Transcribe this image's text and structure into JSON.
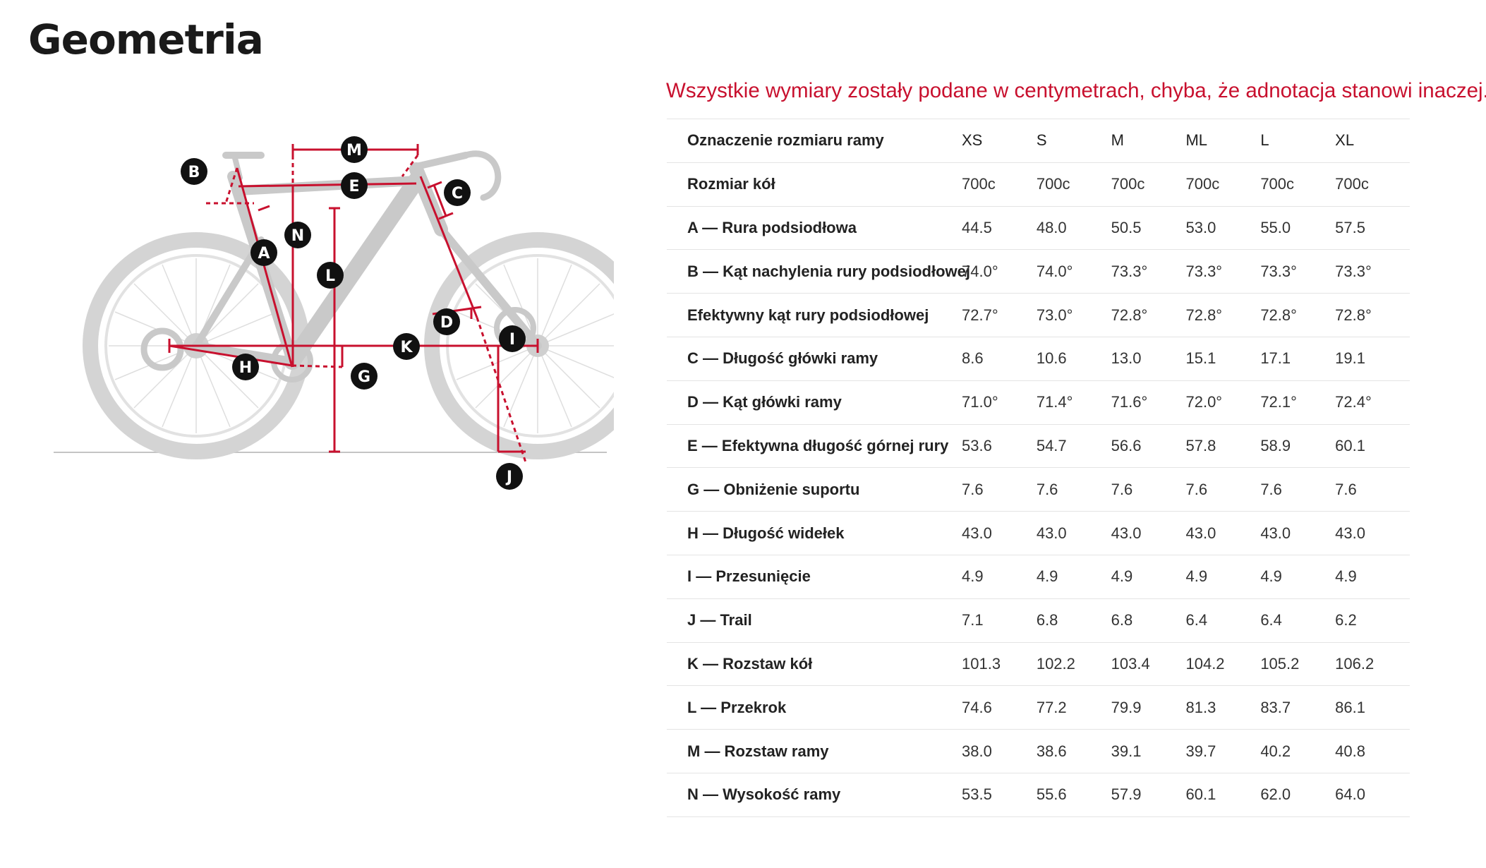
{
  "page": {
    "title": "Geometria",
    "note": "Wszystkie wymiary zostały podane w centymetrach, chyba, że adnotacja stanowi inaczej."
  },
  "diagram": {
    "markers": [
      "M",
      "B",
      "E",
      "C",
      "N",
      "A",
      "L",
      "D",
      "I",
      "K",
      "H",
      "G",
      "J"
    ]
  },
  "table": {
    "header_label": "Oznaczenie rozmiaru ramy",
    "sizes": [
      "XS",
      "S",
      "M",
      "ML",
      "L",
      "XL"
    ],
    "rows": [
      {
        "label": "Rozmiar kół",
        "values": [
          "700c",
          "700c",
          "700c",
          "700c",
          "700c",
          "700c"
        ]
      },
      {
        "label": "A — Rura podsiodłowa",
        "values": [
          "44.5",
          "48.0",
          "50.5",
          "53.0",
          "55.0",
          "57.5"
        ]
      },
      {
        "label": "B — Kąt nachylenia rury podsiodłowej",
        "values": [
          "74.0°",
          "74.0°",
          "73.3°",
          "73.3°",
          "73.3°",
          "73.3°"
        ]
      },
      {
        "label": "Efektywny kąt rury podsiodłowej",
        "values": [
          "72.7°",
          "73.0°",
          "72.8°",
          "72.8°",
          "72.8°",
          "72.8°"
        ]
      },
      {
        "label": "C — Długość główki ramy",
        "values": [
          "8.6",
          "10.6",
          "13.0",
          "15.1",
          "17.1",
          "19.1"
        ]
      },
      {
        "label": "D — Kąt główki ramy",
        "values": [
          "71.0°",
          "71.4°",
          "71.6°",
          "72.0°",
          "72.1°",
          "72.4°"
        ]
      },
      {
        "label": "E — Efektywna długość górnej rury",
        "values": [
          "53.6",
          "54.7",
          "56.6",
          "57.8",
          "58.9",
          "60.1"
        ]
      },
      {
        "label": "G — Obniżenie suportu",
        "values": [
          "7.6",
          "7.6",
          "7.6",
          "7.6",
          "7.6",
          "7.6"
        ]
      },
      {
        "label": "H — Długość widełek",
        "values": [
          "43.0",
          "43.0",
          "43.0",
          "43.0",
          "43.0",
          "43.0"
        ]
      },
      {
        "label": "I — Przesunięcie",
        "values": [
          "4.9",
          "4.9",
          "4.9",
          "4.9",
          "4.9",
          "4.9"
        ]
      },
      {
        "label": "J — Trail",
        "values": [
          "7.1",
          "6.8",
          "6.8",
          "6.4",
          "6.4",
          "6.2"
        ]
      },
      {
        "label": "K — Rozstaw kół",
        "values": [
          "101.3",
          "102.2",
          "103.4",
          "104.2",
          "105.2",
          "106.2"
        ]
      },
      {
        "label": "L — Przekrok",
        "values": [
          "74.6",
          "77.2",
          "79.9",
          "81.3",
          "83.7",
          "86.1"
        ]
      },
      {
        "label": "M — Rozstaw ramy",
        "values": [
          "38.0",
          "38.6",
          "39.1",
          "39.7",
          "40.2",
          "40.8"
        ]
      },
      {
        "label": "N — Wysokość ramy",
        "values": [
          "53.5",
          "55.6",
          "57.9",
          "60.1",
          "62.0",
          "64.0"
        ]
      }
    ]
  },
  "colors": {
    "accent": "#c8102e",
    "bike": "#cfcfcf",
    "marker_bg": "#111111"
  }
}
